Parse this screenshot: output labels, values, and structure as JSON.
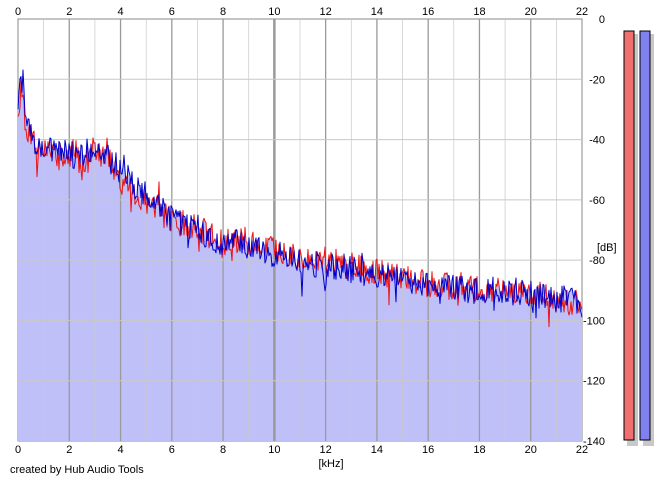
{
  "chart_data": {
    "type": "line",
    "title": "",
    "xlabel": "[kHz]",
    "ylabel": "[dB]",
    "xlim": [
      0,
      22
    ],
    "ylim": [
      -140,
      0
    ],
    "x_ticks": [
      0,
      2,
      4,
      6,
      8,
      10,
      12,
      14,
      16,
      18,
      20,
      22
    ],
    "y_ticks": [
      0,
      -20,
      -40,
      -60,
      -80,
      -100,
      -120,
      -140
    ],
    "grid": true,
    "series": [
      {
        "color": "#ee1111",
        "x": [
          0.0,
          0.1,
          0.2,
          0.3,
          0.5,
          0.8,
          1.0,
          1.5,
          2.0,
          2.5,
          3.0,
          3.5,
          4.0,
          4.5,
          5.0,
          5.5,
          6.0,
          6.5,
          7.0,
          7.5,
          8.0,
          8.5,
          9.0,
          9.5,
          10.0,
          10.5,
          11.0,
          11.5,
          12.0,
          12.5,
          13.0,
          13.5,
          14.0,
          14.5,
          15.0,
          15.5,
          16.0,
          16.5,
          17.0,
          17.5,
          18.0,
          18.5,
          19.0,
          19.5,
          20.0,
          20.5,
          21.0,
          21.5,
          22.0
        ],
        "values": [
          -30,
          -24,
          -28,
          -35,
          -40,
          -44,
          -43,
          -46,
          -45,
          -47,
          -44,
          -47,
          -54,
          -58,
          -61,
          -63,
          -67,
          -68,
          -69,
          -72,
          -73,
          -72,
          -74,
          -76,
          -76,
          -77,
          -79,
          -80,
          -80,
          -81,
          -82,
          -83,
          -84,
          -85,
          -86,
          -87,
          -88,
          -88,
          -89,
          -89,
          -90,
          -90,
          -90,
          -91,
          -91,
          -92,
          -93,
          -94,
          -97
        ]
      },
      {
        "color": "#0000cc",
        "x": [
          0.0,
          0.1,
          0.2,
          0.3,
          0.5,
          0.8,
          1.0,
          1.5,
          2.0,
          2.5,
          3.0,
          3.5,
          4.0,
          4.5,
          5.0,
          5.5,
          6.0,
          6.5,
          7.0,
          7.5,
          8.0,
          8.5,
          9.0,
          9.5,
          10.0,
          10.5,
          11.0,
          11.5,
          12.0,
          12.5,
          13.0,
          13.5,
          14.0,
          14.5,
          15.0,
          15.5,
          16.0,
          16.5,
          17.0,
          17.5,
          18.0,
          18.5,
          19.0,
          19.5,
          20.0,
          20.5,
          21.0,
          21.5,
          22.0
        ],
        "values": [
          -28,
          -22,
          -20,
          -34,
          -38,
          -42,
          -42,
          -45,
          -44,
          -46,
          -42,
          -46,
          -50,
          -55,
          -58,
          -63,
          -66,
          -68,
          -70,
          -73,
          -74,
          -74,
          -75,
          -77,
          -78,
          -79,
          -80,
          -81,
          -82,
          -82,
          -83,
          -84,
          -85,
          -86,
          -87,
          -88,
          -88,
          -89,
          -89,
          -90,
          -90,
          -90,
          -91,
          -91,
          -91,
          -92,
          -93,
          -93,
          -96
        ]
      }
    ]
  },
  "meters": {
    "left": {
      "color": "#f07070",
      "level": 1.0
    },
    "right": {
      "color": "#8080f0",
      "level": 1.0
    }
  },
  "credit": "created by Hub Audio Tools",
  "colors": {
    "area_fill": "#c0c0f8",
    "grid_major": "#9a9a9a",
    "grid_minor": "#c8c8c8",
    "border": "#888888"
  }
}
